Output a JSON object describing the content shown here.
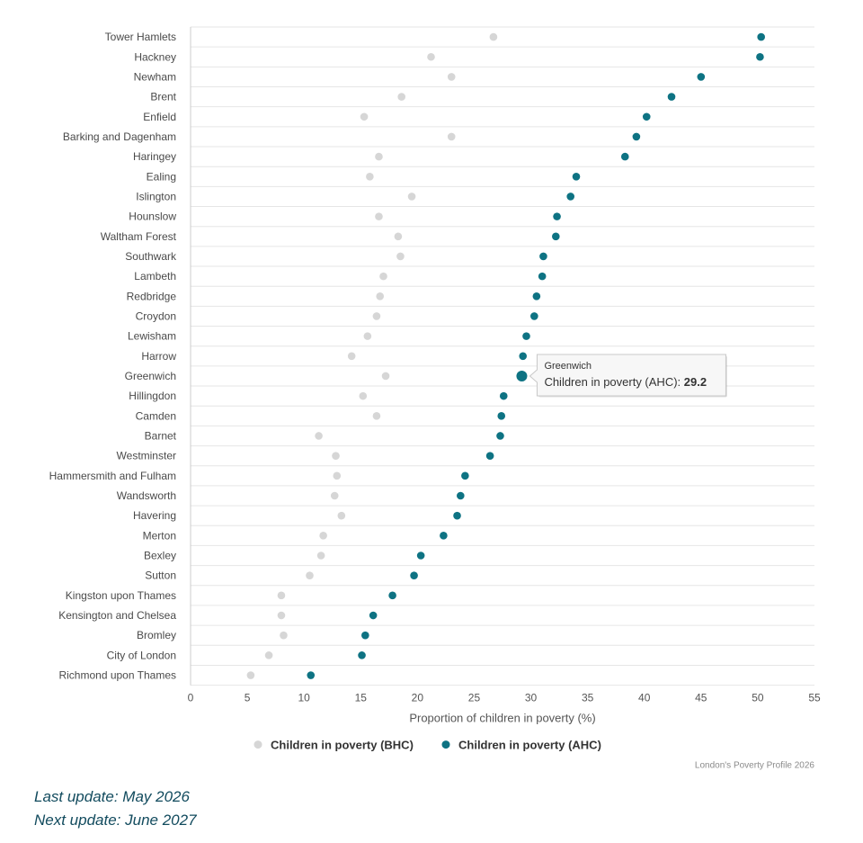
{
  "chart_data": {
    "type": "scatter",
    "orientation": "horizontal-dot-plot",
    "categories": [
      "Tower Hamlets",
      "Hackney",
      "Newham",
      "Brent",
      "Enfield",
      "Barking and Dagenham",
      "Haringey",
      "Ealing",
      "Islington",
      "Hounslow",
      "Waltham Forest",
      "Southwark",
      "Lambeth",
      "Redbridge",
      "Croydon",
      "Lewisham",
      "Harrow",
      "Greenwich",
      "Hillingdon",
      "Camden",
      "Barnet",
      "Westminster",
      "Hammersmith and Fulham",
      "Wandsworth",
      "Havering",
      "Merton",
      "Bexley",
      "Sutton",
      "Kingston upon Thames",
      "Kensington and Chelsea",
      "Bromley",
      "City of London",
      "Richmond upon Thames"
    ],
    "series": [
      {
        "name": "Children in poverty (BHC)",
        "color": "#d6d6d6",
        "values": [
          26.7,
          21.2,
          23.0,
          18.6,
          15.3,
          23.0,
          16.6,
          15.8,
          19.5,
          16.6,
          18.3,
          18.5,
          17.0,
          16.7,
          16.4,
          15.6,
          14.2,
          17.2,
          15.2,
          16.4,
          11.3,
          12.8,
          12.9,
          12.7,
          13.3,
          11.7,
          11.5,
          10.5,
          8.0,
          8.0,
          8.2,
          6.9,
          5.3
        ]
      },
      {
        "name": "Children in poverty (AHC)",
        "color": "#0e7383",
        "values": [
          50.3,
          50.2,
          45.0,
          42.4,
          40.2,
          39.3,
          38.3,
          34.0,
          33.5,
          32.3,
          32.2,
          31.1,
          31.0,
          30.5,
          30.3,
          29.6,
          29.3,
          29.2,
          27.6,
          27.4,
          27.3,
          26.4,
          24.2,
          23.8,
          23.5,
          22.3,
          20.3,
          19.7,
          17.8,
          16.1,
          15.4,
          15.1,
          10.6
        ]
      }
    ],
    "xlabel": "Proportion of children in poverty (%)",
    "xlim": [
      0,
      55
    ],
    "xticks": [
      "0",
      "5",
      "10",
      "15",
      "20",
      "25",
      "30",
      "35",
      "40",
      "45",
      "50",
      "55"
    ],
    "grid": "horizontal row separators",
    "legend": "bottom-center",
    "credit": "London's Poverty Profile 2026",
    "tooltip": {
      "category_index": 17,
      "series_index": 1,
      "title": "Greenwich",
      "label": "Children in poverty (AHC): ",
      "value": "29.2"
    }
  },
  "footer": {
    "last_update": "Last update: May 2026",
    "next_update": "Next update: June 2027"
  }
}
